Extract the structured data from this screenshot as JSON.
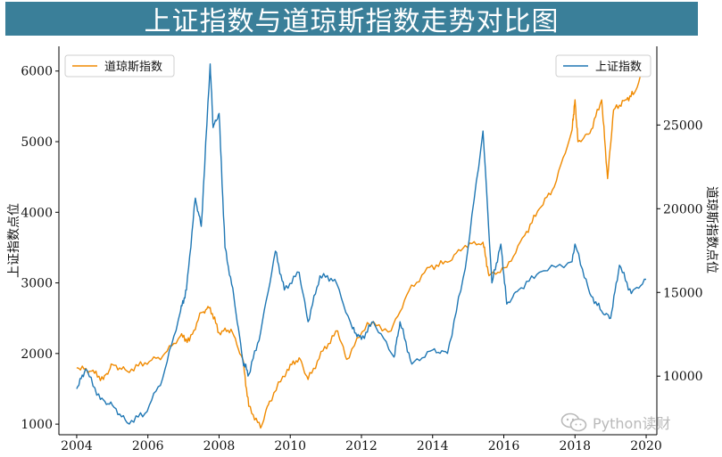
{
  "title": "上证指数与道琼斯指数走势对比图",
  "watermark_text": "Python读财",
  "colors": {
    "sse": "#1f77b4",
    "dji": "#f08a00",
    "title_bg": "#3a7f99"
  },
  "chart_data": {
    "type": "line",
    "title": "上证指数与道琼斯指数走势对比图",
    "xlabel": "",
    "x_ticks": [
      "2004",
      "2006",
      "2008",
      "2010",
      "2012",
      "2014",
      "2016",
      "2018",
      "2020"
    ],
    "y_left": {
      "label": "上证指数点位",
      "ticks": [
        1000,
        2000,
        3000,
        4000,
        5000,
        6000
      ],
      "range": [
        850,
        6350
      ]
    },
    "y_right": {
      "label": "道琼斯指数点位",
      "ticks": [
        10000,
        15000,
        20000,
        25000
      ],
      "range": [
        6500,
        29700
      ]
    },
    "legend": {
      "left": "top-left",
      "right": "top-right"
    },
    "grid": false,
    "series": [
      {
        "name": "上证指数",
        "axis": "left",
        "points": [
          [
            "2004-01",
            1500
          ],
          [
            "2004-04",
            1780
          ],
          [
            "2004-09",
            1350
          ],
          [
            "2005-01",
            1270
          ],
          [
            "2005-06",
            1020
          ],
          [
            "2005-12",
            1150
          ],
          [
            "2006-06",
            1650
          ],
          [
            "2006-12",
            2600
          ],
          [
            "2007-02",
            2900
          ],
          [
            "2007-05",
            4200
          ],
          [
            "2007-07",
            3800
          ],
          [
            "2007-10",
            6100
          ],
          [
            "2007-11",
            5200
          ],
          [
            "2008-01",
            5400
          ],
          [
            "2008-03",
            3500
          ],
          [
            "2008-06",
            2800
          ],
          [
            "2008-09",
            1900
          ],
          [
            "2008-11",
            1700
          ],
          [
            "2009-03",
            2300
          ],
          [
            "2009-08",
            3450
          ],
          [
            "2009-11",
            2900
          ],
          [
            "2010-04",
            3150
          ],
          [
            "2010-07",
            2450
          ],
          [
            "2010-11",
            3100
          ],
          [
            "2011-04",
            3050
          ],
          [
            "2011-10",
            2350
          ],
          [
            "2012-01",
            2200
          ],
          [
            "2012-05",
            2450
          ],
          [
            "2012-12",
            1950
          ],
          [
            "2013-02",
            2450
          ],
          [
            "2013-06",
            1850
          ],
          [
            "2014-01",
            2050
          ],
          [
            "2014-06",
            2000
          ],
          [
            "2014-12",
            3200
          ],
          [
            "2015-06",
            5150
          ],
          [
            "2015-09",
            3000
          ],
          [
            "2015-12",
            3550
          ],
          [
            "2016-02",
            2700
          ],
          [
            "2016-06",
            2900
          ],
          [
            "2017-01",
            3150
          ],
          [
            "2017-12",
            3300
          ],
          [
            "2018-01",
            3550
          ],
          [
            "2018-06",
            2850
          ],
          [
            "2018-10",
            2600
          ],
          [
            "2019-01",
            2500
          ],
          [
            "2019-04",
            3250
          ],
          [
            "2019-08",
            2850
          ],
          [
            "2020-01",
            3050
          ]
        ]
      },
      {
        "name": "道琼斯指数",
        "axis": "right",
        "points": [
          [
            "2004-01",
            10500
          ],
          [
            "2004-06",
            10300
          ],
          [
            "2004-10",
            9800
          ],
          [
            "2005-01",
            10700
          ],
          [
            "2005-06",
            10300
          ],
          [
            "2005-12",
            10800
          ],
          [
            "2006-06",
            11200
          ],
          [
            "2006-12",
            12400
          ],
          [
            "2007-03",
            12100
          ],
          [
            "2007-07",
            13800
          ],
          [
            "2007-10",
            14100
          ],
          [
            "2008-01",
            12600
          ],
          [
            "2008-05",
            12800
          ],
          [
            "2008-09",
            11000
          ],
          [
            "2008-11",
            8200
          ],
          [
            "2009-03",
            6900
          ],
          [
            "2009-06",
            8500
          ],
          [
            "2009-12",
            10400
          ],
          [
            "2010-04",
            11100
          ],
          [
            "2010-07",
            9800
          ],
          [
            "2010-12",
            11500
          ],
          [
            "2011-05",
            12700
          ],
          [
            "2011-08",
            11000
          ],
          [
            "2012-03",
            13200
          ],
          [
            "2012-11",
            12700
          ],
          [
            "2013-05",
            15100
          ],
          [
            "2013-12",
            16500
          ],
          [
            "2014-06",
            16800
          ],
          [
            "2014-12",
            17800
          ],
          [
            "2015-06",
            18000
          ],
          [
            "2015-08",
            16000
          ],
          [
            "2016-02",
            16500
          ],
          [
            "2016-08",
            18400
          ],
          [
            "2017-01",
            20000
          ],
          [
            "2017-06",
            21300
          ],
          [
            "2017-12",
            24700
          ],
          [
            "2018-01",
            26500
          ],
          [
            "2018-02",
            24000
          ],
          [
            "2018-06",
            24500
          ],
          [
            "2018-10",
            26500
          ],
          [
            "2018-12",
            21800
          ],
          [
            "2019-02",
            25900
          ],
          [
            "2019-06",
            26500
          ],
          [
            "2019-09",
            26900
          ],
          [
            "2020-01",
            28800
          ]
        ]
      }
    ]
  }
}
